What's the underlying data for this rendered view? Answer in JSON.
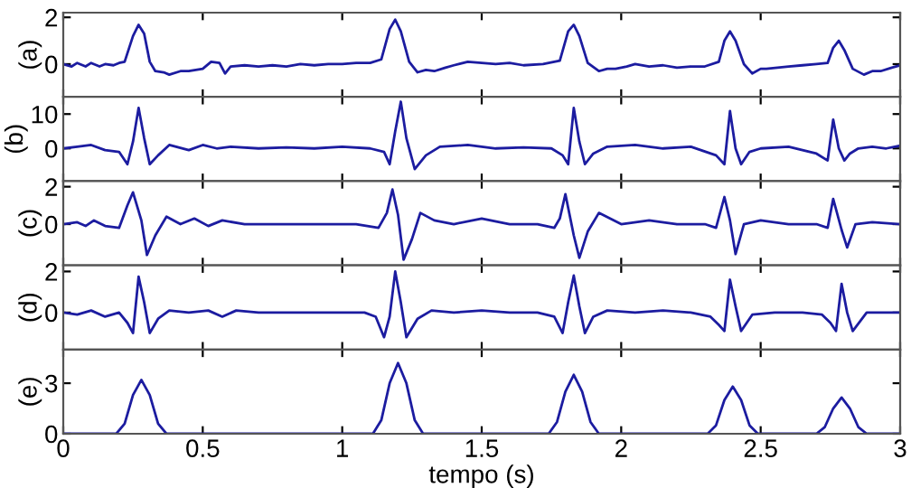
{
  "chart_data": [
    {
      "type": "line",
      "ylabel": "(a)",
      "color": "#1c1ca0",
      "xlim": [
        0,
        3
      ],
      "xticks": [
        0,
        0.5,
        1,
        1.5,
        2,
        2.5,
        3
      ],
      "ylim": [
        -1.4,
        2.2
      ],
      "yticks": [
        0,
        2
      ],
      "tick_labels": "y",
      "x": [
        0,
        0.03,
        0.05,
        0.08,
        0.1,
        0.13,
        0.15,
        0.18,
        0.2,
        0.22,
        0.25,
        0.27,
        0.29,
        0.31,
        0.33,
        0.36,
        0.38,
        0.42,
        0.45,
        0.5,
        0.53,
        0.56,
        0.58,
        0.6,
        0.65,
        0.7,
        0.75,
        0.8,
        0.85,
        0.9,
        0.95,
        1.0,
        1.05,
        1.1,
        1.14,
        1.17,
        1.19,
        1.21,
        1.24,
        1.27,
        1.3,
        1.33,
        1.37,
        1.4,
        1.45,
        1.5,
        1.55,
        1.6,
        1.65,
        1.72,
        1.78,
        1.81,
        1.83,
        1.85,
        1.88,
        1.92,
        1.95,
        1.98,
        2.02,
        2.05,
        2.1,
        2.15,
        2.2,
        2.25,
        2.3,
        2.35,
        2.37,
        2.39,
        2.41,
        2.44,
        2.47,
        2.5,
        2.52,
        2.56,
        2.6,
        2.65,
        2.7,
        2.74,
        2.76,
        2.78,
        2.8,
        2.83,
        2.87,
        2.9,
        2.93,
        2.97,
        3.0
      ],
      "values": [
        0,
        -0.1,
        0.05,
        -0.1,
        0.05,
        -0.1,
        0,
        -0.05,
        0.05,
        0.1,
        1.2,
        1.68,
        1.3,
        0.1,
        -0.3,
        -0.35,
        -0.45,
        -0.3,
        -0.3,
        -0.2,
        0.1,
        0.05,
        -0.4,
        -0.1,
        -0.05,
        -0.1,
        -0.05,
        -0.1,
        0,
        -0.05,
        0,
        0,
        0.05,
        0.05,
        0.2,
        1.5,
        1.9,
        1.4,
        0.1,
        -0.35,
        -0.25,
        -0.3,
        -0.15,
        -0.05,
        0.1,
        0.05,
        0,
        0.05,
        -0.05,
        0,
        0.15,
        1.4,
        1.68,
        1.2,
        0.05,
        -0.3,
        -0.2,
        -0.2,
        -0.1,
        0,
        -0.1,
        -0.05,
        -0.15,
        -0.1,
        -0.1,
        0.1,
        1.0,
        1.4,
        1.0,
        0,
        -0.4,
        -0.2,
        -0.2,
        -0.15,
        -0.1,
        -0.05,
        0,
        0.05,
        0.7,
        1.0,
        0.6,
        -0.2,
        -0.45,
        -0.3,
        -0.3,
        -0.15,
        -0.05
      ]
    },
    {
      "type": "line",
      "ylabel": "(b)",
      "color": "#1c1ca0",
      "xlim": [
        0,
        3
      ],
      "xticks": [
        0,
        0.5,
        1,
        1.5,
        2,
        2.5,
        3
      ],
      "ylim": [
        -9.5,
        15
      ],
      "yticks": [
        0,
        10
      ],
      "tick_labels": "y",
      "x": [
        0,
        0.05,
        0.1,
        0.15,
        0.2,
        0.23,
        0.25,
        0.27,
        0.29,
        0.31,
        0.34,
        0.38,
        0.45,
        0.5,
        0.55,
        0.6,
        0.7,
        0.8,
        0.9,
        1.0,
        1.1,
        1.15,
        1.17,
        1.19,
        1.21,
        1.23,
        1.26,
        1.3,
        1.35,
        1.45,
        1.55,
        1.65,
        1.75,
        1.79,
        1.81,
        1.83,
        1.85,
        1.87,
        1.9,
        1.95,
        2.05,
        2.15,
        2.25,
        2.34,
        2.37,
        2.39,
        2.41,
        2.43,
        2.46,
        2.5,
        2.6,
        2.7,
        2.74,
        2.76,
        2.78,
        2.8,
        2.82,
        2.85,
        2.9,
        2.95,
        3.0
      ],
      "values": [
        0,
        0.5,
        1,
        -0.5,
        -1,
        -4.6,
        2,
        11.8,
        3,
        -4.6,
        -2,
        1,
        -0.5,
        1,
        0,
        0.5,
        0,
        0.3,
        0,
        0.5,
        0,
        -1,
        -4.6,
        5,
        13.6,
        3,
        -6,
        -2,
        0.5,
        1,
        0,
        0.3,
        0,
        -2,
        -4.6,
        11.8,
        2,
        -4.6,
        -1.5,
        0.5,
        1,
        0,
        0.5,
        -2,
        -4.6,
        10.9,
        0,
        -4.6,
        -1,
        0,
        0.5,
        -1.5,
        -3.5,
        8.4,
        0,
        -3.5,
        -1.5,
        0,
        0.5,
        0,
        0.8
      ]
    },
    {
      "type": "line",
      "ylabel": "(c)",
      "color": "#1c1ca0",
      "xlim": [
        0,
        3
      ],
      "xticks": [
        0,
        0.5,
        1,
        1.5,
        2,
        2.5,
        3
      ],
      "ylim": [
        -2.2,
        2.3
      ],
      "yticks": [
        0,
        2
      ],
      "tick_labels": "y",
      "x": [
        0,
        0.05,
        0.08,
        0.11,
        0.15,
        0.2,
        0.23,
        0.25,
        0.28,
        0.3,
        0.33,
        0.37,
        0.42,
        0.47,
        0.52,
        0.57,
        0.65,
        0.8,
        0.95,
        1.05,
        1.13,
        1.16,
        1.18,
        1.2,
        1.22,
        1.25,
        1.28,
        1.33,
        1.4,
        1.5,
        1.6,
        1.7,
        1.76,
        1.78,
        1.8,
        1.83,
        1.85,
        1.88,
        1.92,
        2.0,
        2.1,
        2.2,
        2.3,
        2.34,
        2.37,
        2.39,
        2.41,
        2.44,
        2.5,
        2.6,
        2.7,
        2.74,
        2.76,
        2.79,
        2.81,
        2.84,
        2.9,
        3.0
      ],
      "values": [
        0,
        0.1,
        -0.1,
        0.2,
        -0.1,
        -0.2,
        1.0,
        1.7,
        0.2,
        -1.65,
        -0.6,
        0.4,
        0,
        0.3,
        -0.1,
        0.2,
        0,
        0,
        0,
        0,
        -0.2,
        0.6,
        1.85,
        0.5,
        -1.9,
        -0.8,
        0.6,
        0.2,
        0,
        0.3,
        0,
        0,
        -0.2,
        0.3,
        1.6,
        -0.6,
        -1.8,
        -0.4,
        0.6,
        0,
        0.2,
        0,
        0,
        -0.2,
        1.45,
        0.2,
        -1.6,
        0,
        0.2,
        0,
        0,
        -0.2,
        1.35,
        -0.3,
        -1.25,
        0,
        0.1,
        0
      ]
    },
    {
      "type": "line",
      "ylabel": "(d)",
      "color": "#1c1ca0",
      "xlim": [
        0,
        3
      ],
      "xticks": [
        0,
        0.5,
        1,
        1.5,
        2,
        2.5,
        3
      ],
      "ylim": [
        -1.8,
        2.3
      ],
      "yticks": [
        0,
        2
      ],
      "tick_labels": "y",
      "x": [
        0,
        0.05,
        0.1,
        0.15,
        0.2,
        0.23,
        0.25,
        0.27,
        0.29,
        0.31,
        0.34,
        0.38,
        0.45,
        0.52,
        0.57,
        0.62,
        0.7,
        0.8,
        0.9,
        1.0,
        1.08,
        1.12,
        1.15,
        1.17,
        1.19,
        1.21,
        1.23,
        1.27,
        1.32,
        1.4,
        1.5,
        1.6,
        1.7,
        1.76,
        1.79,
        1.81,
        1.83,
        1.85,
        1.87,
        1.9,
        1.95,
        2.05,
        2.15,
        2.25,
        2.32,
        2.35,
        2.37,
        2.39,
        2.41,
        2.43,
        2.47,
        2.55,
        2.65,
        2.72,
        2.75,
        2.77,
        2.79,
        2.81,
        2.83,
        2.88,
        2.95,
        3.0
      ],
      "values": [
        0,
        -0.1,
        0.1,
        -0.2,
        0,
        -0.5,
        -1.0,
        1.75,
        0.5,
        -1.0,
        -0.3,
        0.1,
        0,
        0.1,
        -0.2,
        0.1,
        0,
        0,
        0,
        0,
        0,
        -0.2,
        -1.2,
        -0.2,
        2.0,
        0.5,
        -1.2,
        -0.3,
        0.1,
        0,
        0.1,
        0,
        0,
        -0.2,
        -1.0,
        0.5,
        1.8,
        0.3,
        -1.0,
        -0.2,
        0.1,
        0,
        0.1,
        0,
        -0.2,
        -0.6,
        -0.9,
        1.6,
        0.3,
        -0.9,
        -0.1,
        0,
        0,
        -0.1,
        -0.5,
        -0.9,
        1.4,
        0,
        -0.9,
        0,
        0,
        0
      ]
    },
    {
      "type": "line",
      "ylabel": "(e)",
      "xlabel": "tempo (s)",
      "color": "#1c1ca0",
      "xlim": [
        0,
        3
      ],
      "xticks": [
        0,
        0.5,
        1,
        1.5,
        2,
        2.5,
        3
      ],
      "ylim": [
        0,
        5
      ],
      "yticks": [
        0,
        3
      ],
      "x": [
        0,
        0.19,
        0.22,
        0.25,
        0.28,
        0.31,
        0.34,
        0.37,
        1.11,
        1.14,
        1.17,
        1.2,
        1.23,
        1.26,
        1.29,
        1.74,
        1.77,
        1.8,
        1.83,
        1.86,
        1.89,
        1.92,
        2.31,
        2.34,
        2.37,
        2.4,
        2.43,
        2.46,
        2.49,
        2.7,
        2.73,
        2.76,
        2.79,
        2.82,
        2.85,
        2.88,
        3.0
      ],
      "values": [
        0,
        0,
        0.6,
        2.3,
        3.2,
        2.3,
        0.6,
        0,
        0,
        0.8,
        3.0,
        4.2,
        3.0,
        0.8,
        0,
        0,
        0.7,
        2.5,
        3.5,
        2.5,
        0.7,
        0,
        0,
        0.5,
        2.0,
        2.8,
        2.0,
        0.5,
        0,
        0,
        0.4,
        1.5,
        2.15,
        1.5,
        0.4,
        0,
        0
      ]
    }
  ]
}
